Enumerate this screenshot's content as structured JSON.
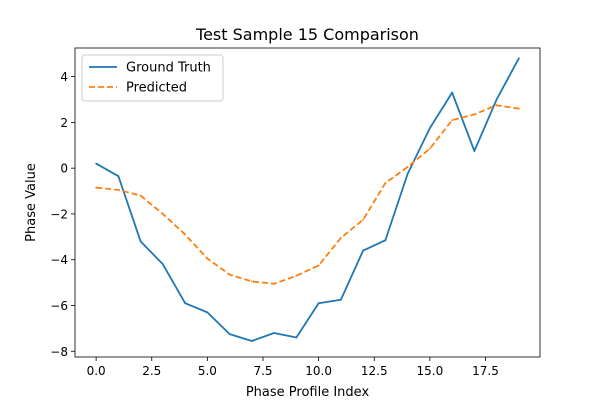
{
  "chart_data": {
    "type": "line",
    "title": "Test Sample 15 Comparison",
    "xlabel": "Phase Profile Index",
    "ylabel": "Phase Value",
    "xlim": [
      -0.95,
      19.95
    ],
    "ylim": [
      -8.25,
      5.25
    ],
    "xticks": [
      0,
      2.5,
      5,
      7.5,
      10,
      12.5,
      15,
      17.5
    ],
    "xtick_labels": [
      "0.0",
      "2.5",
      "5.0",
      "7.5",
      "10.0",
      "12.5",
      "15.0",
      "17.5"
    ],
    "yticks": [
      -8,
      -6,
      -4,
      -2,
      0,
      2,
      4
    ],
    "ytick_labels": [
      "−8",
      "−6",
      "−4",
      "−2",
      "0",
      "2",
      "4"
    ],
    "grid": false,
    "legend_position": "upper left",
    "x": [
      0,
      1,
      2,
      3,
      4,
      5,
      6,
      7,
      8,
      9,
      10,
      11,
      12,
      13,
      14,
      15,
      16,
      17,
      18,
      19
    ],
    "series": [
      {
        "name": "Ground Truth",
        "color": "#1f77b4",
        "style": "solid",
        "values": [
          0.2,
          -0.35,
          -3.2,
          -4.2,
          -5.9,
          -6.3,
          -7.25,
          -7.55,
          -7.2,
          -7.4,
          -5.9,
          -5.75,
          -3.6,
          -3.15,
          -0.25,
          1.75,
          3.3,
          0.75,
          3.0,
          4.8
        ]
      },
      {
        "name": "Predicted",
        "color": "#ff7f0e",
        "style": "dashed",
        "values": [
          -0.85,
          -0.95,
          -1.2,
          -2.0,
          -2.9,
          -3.95,
          -4.65,
          -4.95,
          -5.05,
          -4.7,
          -4.25,
          -3.05,
          -2.25,
          -0.65,
          0.05,
          0.85,
          2.1,
          2.35,
          2.75,
          2.6
        ]
      }
    ]
  }
}
